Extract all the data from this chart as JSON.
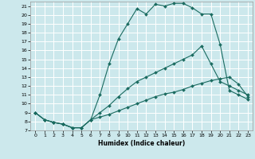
{
  "xlabel": "Humidex (Indice chaleur)",
  "bg_color": "#cce8ec",
  "grid_color": "#ffffff",
  "line_color": "#1a6b60",
  "xlim": [
    -0.5,
    23.5
  ],
  "ylim": [
    7,
    21.5
  ],
  "xticks": [
    0,
    1,
    2,
    3,
    4,
    5,
    6,
    7,
    8,
    9,
    10,
    11,
    12,
    13,
    14,
    15,
    16,
    17,
    18,
    19,
    20,
    21,
    22,
    23
  ],
  "yticks": [
    7,
    8,
    9,
    10,
    11,
    12,
    13,
    14,
    15,
    16,
    17,
    18,
    19,
    20,
    21
  ],
  "line1_x": [
    0,
    1,
    2,
    3,
    4,
    5,
    6,
    7,
    8,
    9,
    10,
    11,
    12,
    13,
    14,
    15,
    16,
    17,
    18,
    19,
    20,
    21,
    22,
    23
  ],
  "line1_y": [
    9,
    8.2,
    7.9,
    7.7,
    7.3,
    7.3,
    8.2,
    11,
    14.5,
    17.3,
    19.0,
    20.7,
    20.1,
    21.2,
    21.0,
    21.3,
    21.3,
    20.8,
    20.1,
    20.1,
    16.7,
    11.5,
    11.0,
    10.5
  ],
  "line2_x": [
    0,
    1,
    2,
    3,
    4,
    5,
    6,
    7,
    8,
    9,
    10,
    11,
    12,
    13,
    14,
    15,
    16,
    17,
    18,
    19,
    20,
    21,
    22,
    23
  ],
  "line2_y": [
    9,
    8.2,
    7.9,
    7.7,
    7.3,
    7.3,
    8.2,
    9.0,
    9.8,
    10.8,
    11.7,
    12.5,
    13.0,
    13.5,
    14.0,
    14.5,
    15.0,
    15.5,
    16.5,
    14.5,
    12.5,
    12.0,
    11.5,
    11.0
  ],
  "line3_x": [
    0,
    1,
    2,
    3,
    4,
    5,
    6,
    7,
    8,
    9,
    10,
    11,
    12,
    13,
    14,
    15,
    16,
    17,
    18,
    19,
    20,
    21,
    22,
    23
  ],
  "line3_y": [
    9,
    8.2,
    7.9,
    7.7,
    7.3,
    7.3,
    8.2,
    8.5,
    8.8,
    9.2,
    9.6,
    10.0,
    10.4,
    10.8,
    11.1,
    11.3,
    11.6,
    12.0,
    12.3,
    12.6,
    12.8,
    13.0,
    12.2,
    10.8
  ]
}
